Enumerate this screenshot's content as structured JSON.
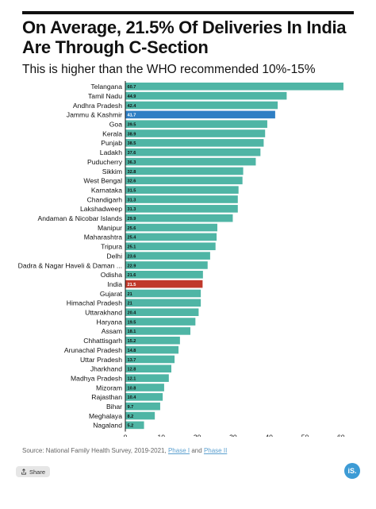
{
  "title": "On Average, 21.5% Of Deliveries In India Are Through C-Section",
  "subtitle": "This is higher than the WHO recommended 10%-15%",
  "source": {
    "prefix": "Source: National Family Health Survey, 2019-2021,",
    "link1": "Phase I",
    "joiner": "and",
    "link2": "Phase II"
  },
  "share_label": "Share",
  "logo_text": "iS.",
  "colors": {
    "default": "#4fb5a5",
    "highlight_state": "#2f7fc4",
    "india": "#c0392b"
  },
  "chart_data": {
    "type": "bar",
    "orientation": "horizontal",
    "title": "On Average, 21.5% Of Deliveries In India Are Through C-Section",
    "subtitle": "This is higher than the WHO recommended 10%-15%",
    "xlabel": "",
    "ylabel": "",
    "xlim": [
      0,
      60
    ],
    "xticks": [
      "0",
      "10",
      "20",
      "30",
      "40",
      "50",
      "60"
    ],
    "grid": false,
    "categories": [
      "Telangana",
      "Tamil Nadu",
      "Andhra Pradesh",
      "Jammu & Kashmir",
      "Goa",
      "Kerala",
      "Punjab",
      "Ladakh",
      "Puducherry",
      "Sikkim",
      "West Bengal",
      "Karnataka",
      "Chandigarh",
      "Lakshadweep",
      "Andaman & Nicobar Islands",
      "Manipur",
      "Maharashtra",
      "Tripura",
      "Delhi",
      "Dadra & Nagar Haveli & Daman ...",
      "Odisha",
      "India",
      "Gujarat",
      "Himachal Pradesh",
      "Uttarakhand",
      "Haryana",
      "Assam",
      "Chhattisgarh",
      "Arunachal Pradesh",
      "Uttar Pradesh",
      "Jharkhand",
      "Madhya Pradesh",
      "Mizoram",
      "Rajasthan",
      "Bihar",
      "Meghalaya",
      "Nagaland"
    ],
    "values": [
      60.7,
      44.9,
      42.4,
      41.7,
      39.5,
      38.9,
      38.5,
      37.6,
      36.3,
      32.8,
      32.6,
      31.5,
      31.3,
      31.3,
      29.9,
      25.6,
      25.4,
      25.1,
      23.6,
      22.9,
      21.6,
      21.5,
      21,
      21,
      20.4,
      19.5,
      18.1,
      15.2,
      14.8,
      13.7,
      12.8,
      12.1,
      10.8,
      10.4,
      9.7,
      8.2,
      5.2
    ],
    "labels": [
      "60.7",
      "44.9",
      "42.4",
      "41.7",
      "39.5",
      "38.9",
      "38.5",
      "37.6",
      "36.3",
      "32.8",
      "32.6",
      "31.5",
      "31.3",
      "31.3",
      "29.9",
      "25.6",
      "25.4",
      "25.1",
      "23.6",
      "22.9",
      "21.6",
      "21.5",
      "21",
      "21",
      "20.4",
      "19.5",
      "18.1",
      "15.2",
      "14.8",
      "13.7",
      "12.8",
      "12.1",
      "10.8",
      "10.4",
      "9.7",
      "8.2",
      "5.2"
    ],
    "highlight": {
      "Jammu & Kashmir": "highlight_state",
      "India": "india"
    }
  }
}
